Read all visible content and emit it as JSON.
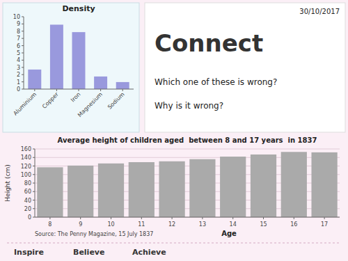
{
  "chart_data": [
    {
      "type": "bar",
      "title": "Density",
      "categories": [
        "Aluminium",
        "Copper",
        "Iron",
        "Magnesium",
        "Sodium"
      ],
      "values": [
        2.7,
        8.9,
        7.87,
        1.74,
        0.97
      ],
      "color": "#9999dd",
      "ylim": [
        0,
        10
      ],
      "yticks": [
        0,
        1,
        2,
        3,
        4,
        5,
        6,
        7,
        8,
        9,
        10
      ]
    },
    {
      "type": "bar",
      "title": "Average height of children aged  between 8 and 17 years  in 1837",
      "x": [
        8,
        9,
        10,
        11,
        12,
        13,
        14,
        15,
        16,
        17
      ],
      "values": [
        117,
        121,
        126,
        129,
        131,
        136,
        142,
        147,
        153,
        152
      ],
      "color": "#aaaaaa",
      "xlim": [
        7.5,
        17.5
      ],
      "xticks": [
        8,
        9,
        10,
        11,
        12,
        13,
        14,
        15,
        16,
        17
      ],
      "ylim": [
        0,
        160
      ],
      "yticks": [
        0,
        20,
        40,
        60,
        80,
        100,
        120,
        140,
        160
      ],
      "x_label": "Age",
      "y_label": "Height (cm)",
      "grid": true,
      "annotations": [
        "30/10/2017",
        "Connect",
        "Which one of these is wrong?",
        "Why is it wrong?",
        "Source: The Penny Magazine, 15 July 1837",
        "Inspire",
        "Believe",
        "Achieve"
      ]
    }
  ]
}
